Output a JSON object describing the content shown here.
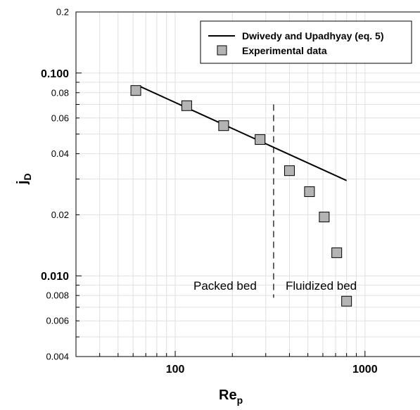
{
  "chart_data": {
    "type": "scatter",
    "x_scale": "log",
    "y_scale": "log",
    "xlim": [
      30,
      2000
    ],
    "ylim": [
      0.004,
      0.2
    ],
    "x_ticks": [
      {
        "value": 100,
        "label": "100"
      },
      {
        "value": 1000,
        "label": "1000"
      }
    ],
    "y_ticks": [
      {
        "value": 0.2,
        "label": "0.2",
        "major": false
      },
      {
        "value": 0.1,
        "label": "0.100",
        "major": true
      },
      {
        "value": 0.08,
        "label": "0.08",
        "major": false
      },
      {
        "value": 0.06,
        "label": "0.06",
        "major": false
      },
      {
        "value": 0.04,
        "label": "0.04",
        "major": false
      },
      {
        "value": 0.02,
        "label": "0.02",
        "major": false
      },
      {
        "value": 0.01,
        "label": "0.010",
        "major": true
      },
      {
        "value": 0.008,
        "label": "0.008",
        "major": false
      },
      {
        "value": 0.006,
        "label": "0.006",
        "major": false
      },
      {
        "value": 0.004,
        "label": "0.004",
        "major": false
      }
    ],
    "xlabel": {
      "main": "Re",
      "sub": "p"
    },
    "ylabel": {
      "main": "j",
      "sub": "D"
    },
    "grid": true,
    "legend_position": "top-right",
    "series": [
      {
        "name": "Dwivedy and Upadhyay (eq. 5)",
        "kind": "line",
        "color": "#000000",
        "x": [
          65,
          800
        ],
        "y": [
          0.086,
          0.0295
        ]
      },
      {
        "name": "Experimental data",
        "kind": "marker",
        "marker": "square",
        "color": "#b4b4b4",
        "x": [
          62,
          115,
          180,
          280,
          400,
          510,
          610,
          710,
          800
        ],
        "y": [
          0.082,
          0.069,
          0.055,
          0.047,
          0.033,
          0.026,
          0.0195,
          0.013,
          0.0075
        ]
      }
    ],
    "divider": {
      "x": 330,
      "y_range": [
        0.0078,
        0.07
      ],
      "style": "dashed"
    },
    "annotations": [
      {
        "text": "Packed bed"
      },
      {
        "text": "Fluidized bed"
      }
    ]
  }
}
